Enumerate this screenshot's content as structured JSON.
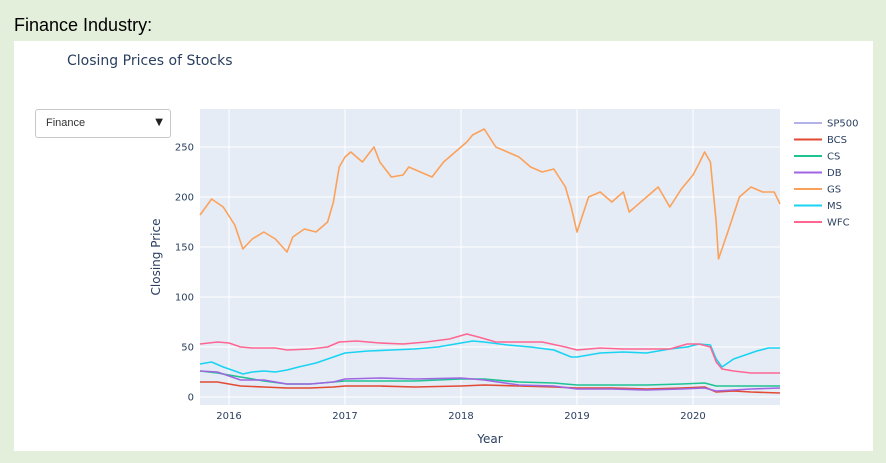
{
  "page": {
    "heading": "Finance Industry:"
  },
  "dropdown": {
    "selected": "Finance",
    "caret": "▼"
  },
  "chart_data": {
    "type": "line",
    "title": "Closing Prices of Stocks",
    "xlabel": "Year",
    "ylabel": "Closing Price",
    "xlim": [
      2015.75,
      2020.75
    ],
    "ylim": [
      -8,
      288
    ],
    "x_ticks": [
      2016,
      2017,
      2018,
      2019,
      2020
    ],
    "x_tick_labels": [
      "2016",
      "2017",
      "2018",
      "2019",
      "2020"
    ],
    "y_ticks": [
      0,
      50,
      100,
      150,
      200,
      250
    ],
    "y_tick_labels": [
      "0",
      "50",
      "100",
      "150",
      "200",
      "250"
    ],
    "grid": true,
    "legend_position": "right",
    "series": [
      {
        "name": "SP500",
        "color": "#b3b3ea",
        "legend_only": true,
        "x": [],
        "y": []
      },
      {
        "name": "BCS",
        "color": "#e24a33",
        "x": [
          2015.75,
          2015.9,
          2016.1,
          2016.3,
          2016.5,
          2016.7,
          2016.9,
          2017.0,
          2017.3,
          2017.6,
          2018.0,
          2018.2,
          2018.5,
          2018.8,
          2019.0,
          2019.3,
          2019.6,
          2019.9,
          2020.1,
          2020.2,
          2020.35,
          2020.5,
          2020.75
        ],
        "y": [
          15,
          15,
          11,
          10,
          9,
          9,
          10,
          11,
          11,
          10,
          11,
          12,
          11,
          10,
          9,
          9,
          8,
          9,
          10,
          5,
          6,
          5,
          4
        ]
      },
      {
        "name": "CS",
        "color": "#1ec392",
        "x": [
          2015.75,
          2015.9,
          2016.1,
          2016.3,
          2016.5,
          2016.7,
          2016.9,
          2017.0,
          2017.3,
          2017.6,
          2018.0,
          2018.2,
          2018.5,
          2018.8,
          2019.0,
          2019.3,
          2019.6,
          2019.9,
          2020.1,
          2020.2,
          2020.35,
          2020.5,
          2020.75
        ],
        "y": [
          26,
          24,
          20,
          16,
          13,
          13,
          15,
          16,
          16,
          16,
          18,
          18,
          15,
          14,
          12,
          12,
          12,
          13,
          14,
          11,
          11,
          11,
          11
        ]
      },
      {
        "name": "DB",
        "color": "#a066e2",
        "x": [
          2015.75,
          2015.9,
          2016.1,
          2016.3,
          2016.5,
          2016.7,
          2016.9,
          2017.0,
          2017.3,
          2017.6,
          2018.0,
          2018.2,
          2018.5,
          2018.8,
          2019.0,
          2019.3,
          2019.6,
          2019.9,
          2020.1,
          2020.2,
          2020.35,
          2020.5,
          2020.75
        ],
        "y": [
          26,
          25,
          17,
          17,
          13,
          13,
          15,
          18,
          19,
          18,
          19,
          17,
          12,
          11,
          8,
          8,
          7,
          8,
          9,
          6,
          7,
          8,
          9
        ]
      },
      {
        "name": "GS",
        "color": "#fca15a",
        "x": [
          2015.75,
          2015.85,
          2015.95,
          2016.05,
          2016.12,
          2016.2,
          2016.3,
          2016.4,
          2016.5,
          2016.55,
          2016.65,
          2016.75,
          2016.85,
          2016.9,
          2016.95,
          2017.0,
          2017.05,
          2017.15,
          2017.25,
          2017.3,
          2017.4,
          2017.5,
          2017.55,
          2017.65,
          2017.75,
          2017.85,
          2017.95,
          2018.05,
          2018.1,
          2018.2,
          2018.3,
          2018.4,
          2018.5,
          2018.6,
          2018.7,
          2018.8,
          2018.9,
          2018.95,
          2019.0,
          2019.1,
          2019.2,
          2019.3,
          2019.4,
          2019.45,
          2019.6,
          2019.7,
          2019.8,
          2019.9,
          2020.0,
          2020.05,
          2020.1,
          2020.15,
          2020.2,
          2020.22,
          2020.3,
          2020.4,
          2020.5,
          2020.6,
          2020.7,
          2020.75
        ],
        "y": [
          182,
          198,
          190,
          172,
          148,
          158,
          165,
          158,
          145,
          160,
          168,
          165,
          175,
          195,
          230,
          240,
          245,
          235,
          250,
          235,
          220,
          222,
          230,
          225,
          220,
          235,
          245,
          255,
          262,
          268,
          250,
          245,
          240,
          230,
          225,
          228,
          210,
          190,
          165,
          200,
          205,
          195,
          205,
          185,
          200,
          210,
          190,
          208,
          222,
          233,
          245,
          235,
          175,
          138,
          165,
          200,
          210,
          205,
          205,
          193
        ]
      },
      {
        "name": "MS",
        "color": "#19d3f3",
        "x": [
          2015.75,
          2015.85,
          2015.95,
          2016.05,
          2016.12,
          2016.2,
          2016.3,
          2016.4,
          2016.5,
          2016.6,
          2016.75,
          2016.9,
          2017.0,
          2017.2,
          2017.4,
          2017.6,
          2017.8,
          2018.0,
          2018.1,
          2018.2,
          2018.4,
          2018.6,
          2018.8,
          2018.95,
          2019.0,
          2019.2,
          2019.4,
          2019.6,
          2019.8,
          2019.95,
          2020.05,
          2020.15,
          2020.2,
          2020.25,
          2020.35,
          2020.45,
          2020.55,
          2020.65,
          2020.75
        ],
        "y": [
          33,
          35,
          30,
          26,
          23,
          25,
          26,
          25,
          27,
          30,
          34,
          40,
          44,
          46,
          47,
          48,
          50,
          54,
          56,
          55,
          52,
          50,
          47,
          40,
          40,
          44,
          45,
          44,
          48,
          50,
          53,
          52,
          38,
          30,
          38,
          42,
          46,
          49,
          49
        ]
      },
      {
        "name": "WFC",
        "color": "#ff6692",
        "x": [
          2015.75,
          2015.9,
          2016.0,
          2016.1,
          2016.2,
          2016.4,
          2016.5,
          2016.7,
          2016.85,
          2016.95,
          2017.1,
          2017.3,
          2017.5,
          2017.7,
          2017.9,
          2018.05,
          2018.15,
          2018.3,
          2018.5,
          2018.7,
          2018.9,
          2019.0,
          2019.2,
          2019.4,
          2019.6,
          2019.8,
          2019.95,
          2020.05,
          2020.15,
          2020.2,
          2020.25,
          2020.35,
          2020.5,
          2020.6,
          2020.75
        ],
        "y": [
          53,
          55,
          54,
          50,
          49,
          49,
          47,
          48,
          50,
          55,
          56,
          54,
          53,
          55,
          58,
          63,
          60,
          55,
          55,
          55,
          50,
          47,
          49,
          48,
          48,
          48,
          53,
          53,
          50,
          35,
          28,
          26,
          24,
          24,
          24
        ]
      }
    ]
  }
}
